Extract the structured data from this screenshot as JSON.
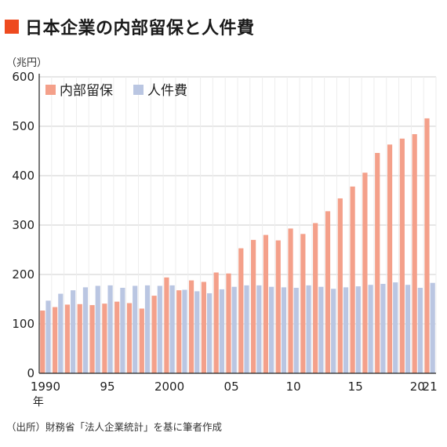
{
  "title": "日本企業の内部留保と人件費",
  "unit_label": "（兆円）",
  "source_note": "（出所）財務省「法人企業統計」を基に筆者作成",
  "colors": {
    "title_square": "#ee4a1f",
    "retained": "#f4a08a",
    "labor": "#bac6e2",
    "grid": "#cfcfcf",
    "axis": "#222222"
  },
  "chart_data": {
    "type": "bar",
    "title": "日本企業の内部留保と人件費",
    "ylabel": "（兆円）",
    "ylim": [
      0,
      600
    ],
    "yticks": [
      0,
      100,
      200,
      300,
      400,
      500,
      600
    ],
    "grid": true,
    "legend_position": "top-left",
    "categories": [
      "1990",
      "1991",
      "1992",
      "1993",
      "1994",
      "1995",
      "1996",
      "1997",
      "1998",
      "1999",
      "2000",
      "2001",
      "2002",
      "2003",
      "2004",
      "2005",
      "2006",
      "2007",
      "2008",
      "2009",
      "2010",
      "2011",
      "2012",
      "2013",
      "2014",
      "2015",
      "2016",
      "2017",
      "2018",
      "2019",
      "2020",
      "2021"
    ],
    "xtick_labels": [
      {
        "index": 0,
        "text": "1990"
      },
      {
        "index": 5,
        "text": "95"
      },
      {
        "index": 10,
        "text": "2000"
      },
      {
        "index": 15,
        "text": "05"
      },
      {
        "index": 20,
        "text": "10"
      },
      {
        "index": 25,
        "text": "15"
      },
      {
        "index": 30,
        "text": "20"
      },
      {
        "index": 31,
        "text": "21"
      }
    ],
    "x_suffix": "年",
    "series": [
      {
        "name": "内部留保",
        "color_key": "retained",
        "values": [
          127,
          134,
          139,
          140,
          138,
          141,
          145,
          142,
          131,
          157,
          194,
          168,
          188,
          185,
          204,
          202,
          253,
          270,
          280,
          269,
          293,
          282,
          304,
          328,
          354,
          378,
          406,
          446,
          463,
          475,
          484,
          516
        ]
      },
      {
        "name": "人件費",
        "color_key": "labor",
        "values": [
          147,
          161,
          168,
          174,
          177,
          178,
          173,
          177,
          178,
          177,
          178,
          169,
          166,
          162,
          170,
          175,
          178,
          178,
          175,
          174,
          173,
          178,
          175,
          171,
          174,
          176,
          179,
          181,
          184,
          179,
          173,
          183
        ]
      }
    ]
  }
}
